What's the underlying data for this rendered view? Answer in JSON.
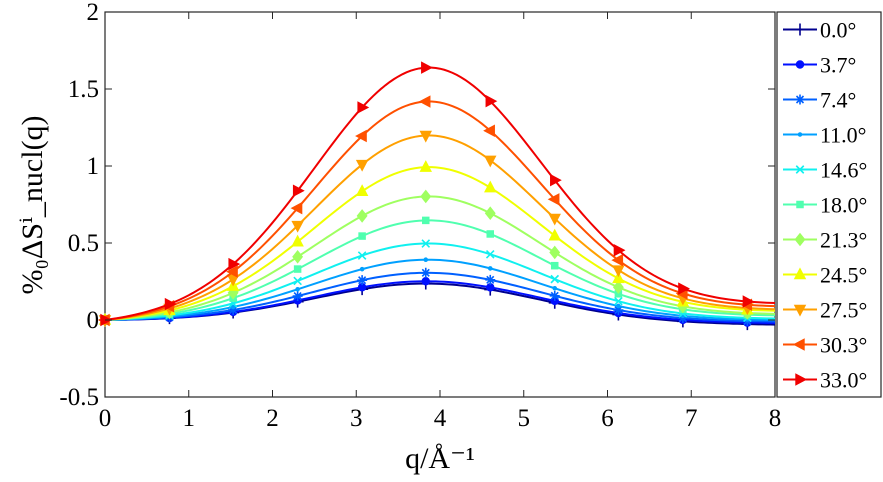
{
  "chart_data": {
    "type": "line",
    "xlabel": "q/Å⁻¹",
    "ylabel": "%₀ΔSⁱ_nucl(q)",
    "xlim": [
      0,
      8
    ],
    "ylim": [
      -0.5,
      2
    ],
    "x_ticks": [
      "0",
      "1",
      "2",
      "3",
      "4",
      "5",
      "6",
      "7",
      "8"
    ],
    "y_ticks": [
      "-0.5",
      "0",
      "0.5",
      "1",
      "1.5",
      "2"
    ],
    "grid": false,
    "legend_position": "outside-right",
    "series": [
      {
        "name": "0.0°",
        "color": "#00008f",
        "marker": "plus",
        "peak": 0.25,
        "tail": -0.03
      },
      {
        "name": "3.7°",
        "color": "#0010ff",
        "marker": "circle",
        "peak": 0.26,
        "tail": -0.02
      },
      {
        "name": "7.4°",
        "color": "#0060ff",
        "marker": "asterisk",
        "peak": 0.31,
        "tail": -0.01
      },
      {
        "name": "11.0°",
        "color": "#00a0ff",
        "marker": "point",
        "peak": 0.39,
        "tail": 0.0
      },
      {
        "name": "14.6°",
        "color": "#10f0ef",
        "marker": "x",
        "peak": 0.49,
        "tail": 0.01
      },
      {
        "name": "18.0°",
        "color": "#50ffaf",
        "marker": "square",
        "peak": 0.63,
        "tail": 0.03
      },
      {
        "name": "21.3°",
        "color": "#9fff60",
        "marker": "diamond",
        "peak": 0.78,
        "tail": 0.04
      },
      {
        "name": "24.5°",
        "color": "#f0ff00",
        "marker": "triangle-up",
        "peak": 0.96,
        "tail": 0.06
      },
      {
        "name": "27.5°",
        "color": "#ffa000",
        "marker": "triangle-down",
        "peak": 1.16,
        "tail": 0.07
      },
      {
        "name": "30.3°",
        "color": "#ff5000",
        "marker": "triangle-left",
        "peak": 1.37,
        "tail": 0.09
      },
      {
        "name": "33.0°",
        "color": "#f00000",
        "marker": "triangle-right",
        "peak": 1.58,
        "tail": 0.11
      }
    ]
  }
}
